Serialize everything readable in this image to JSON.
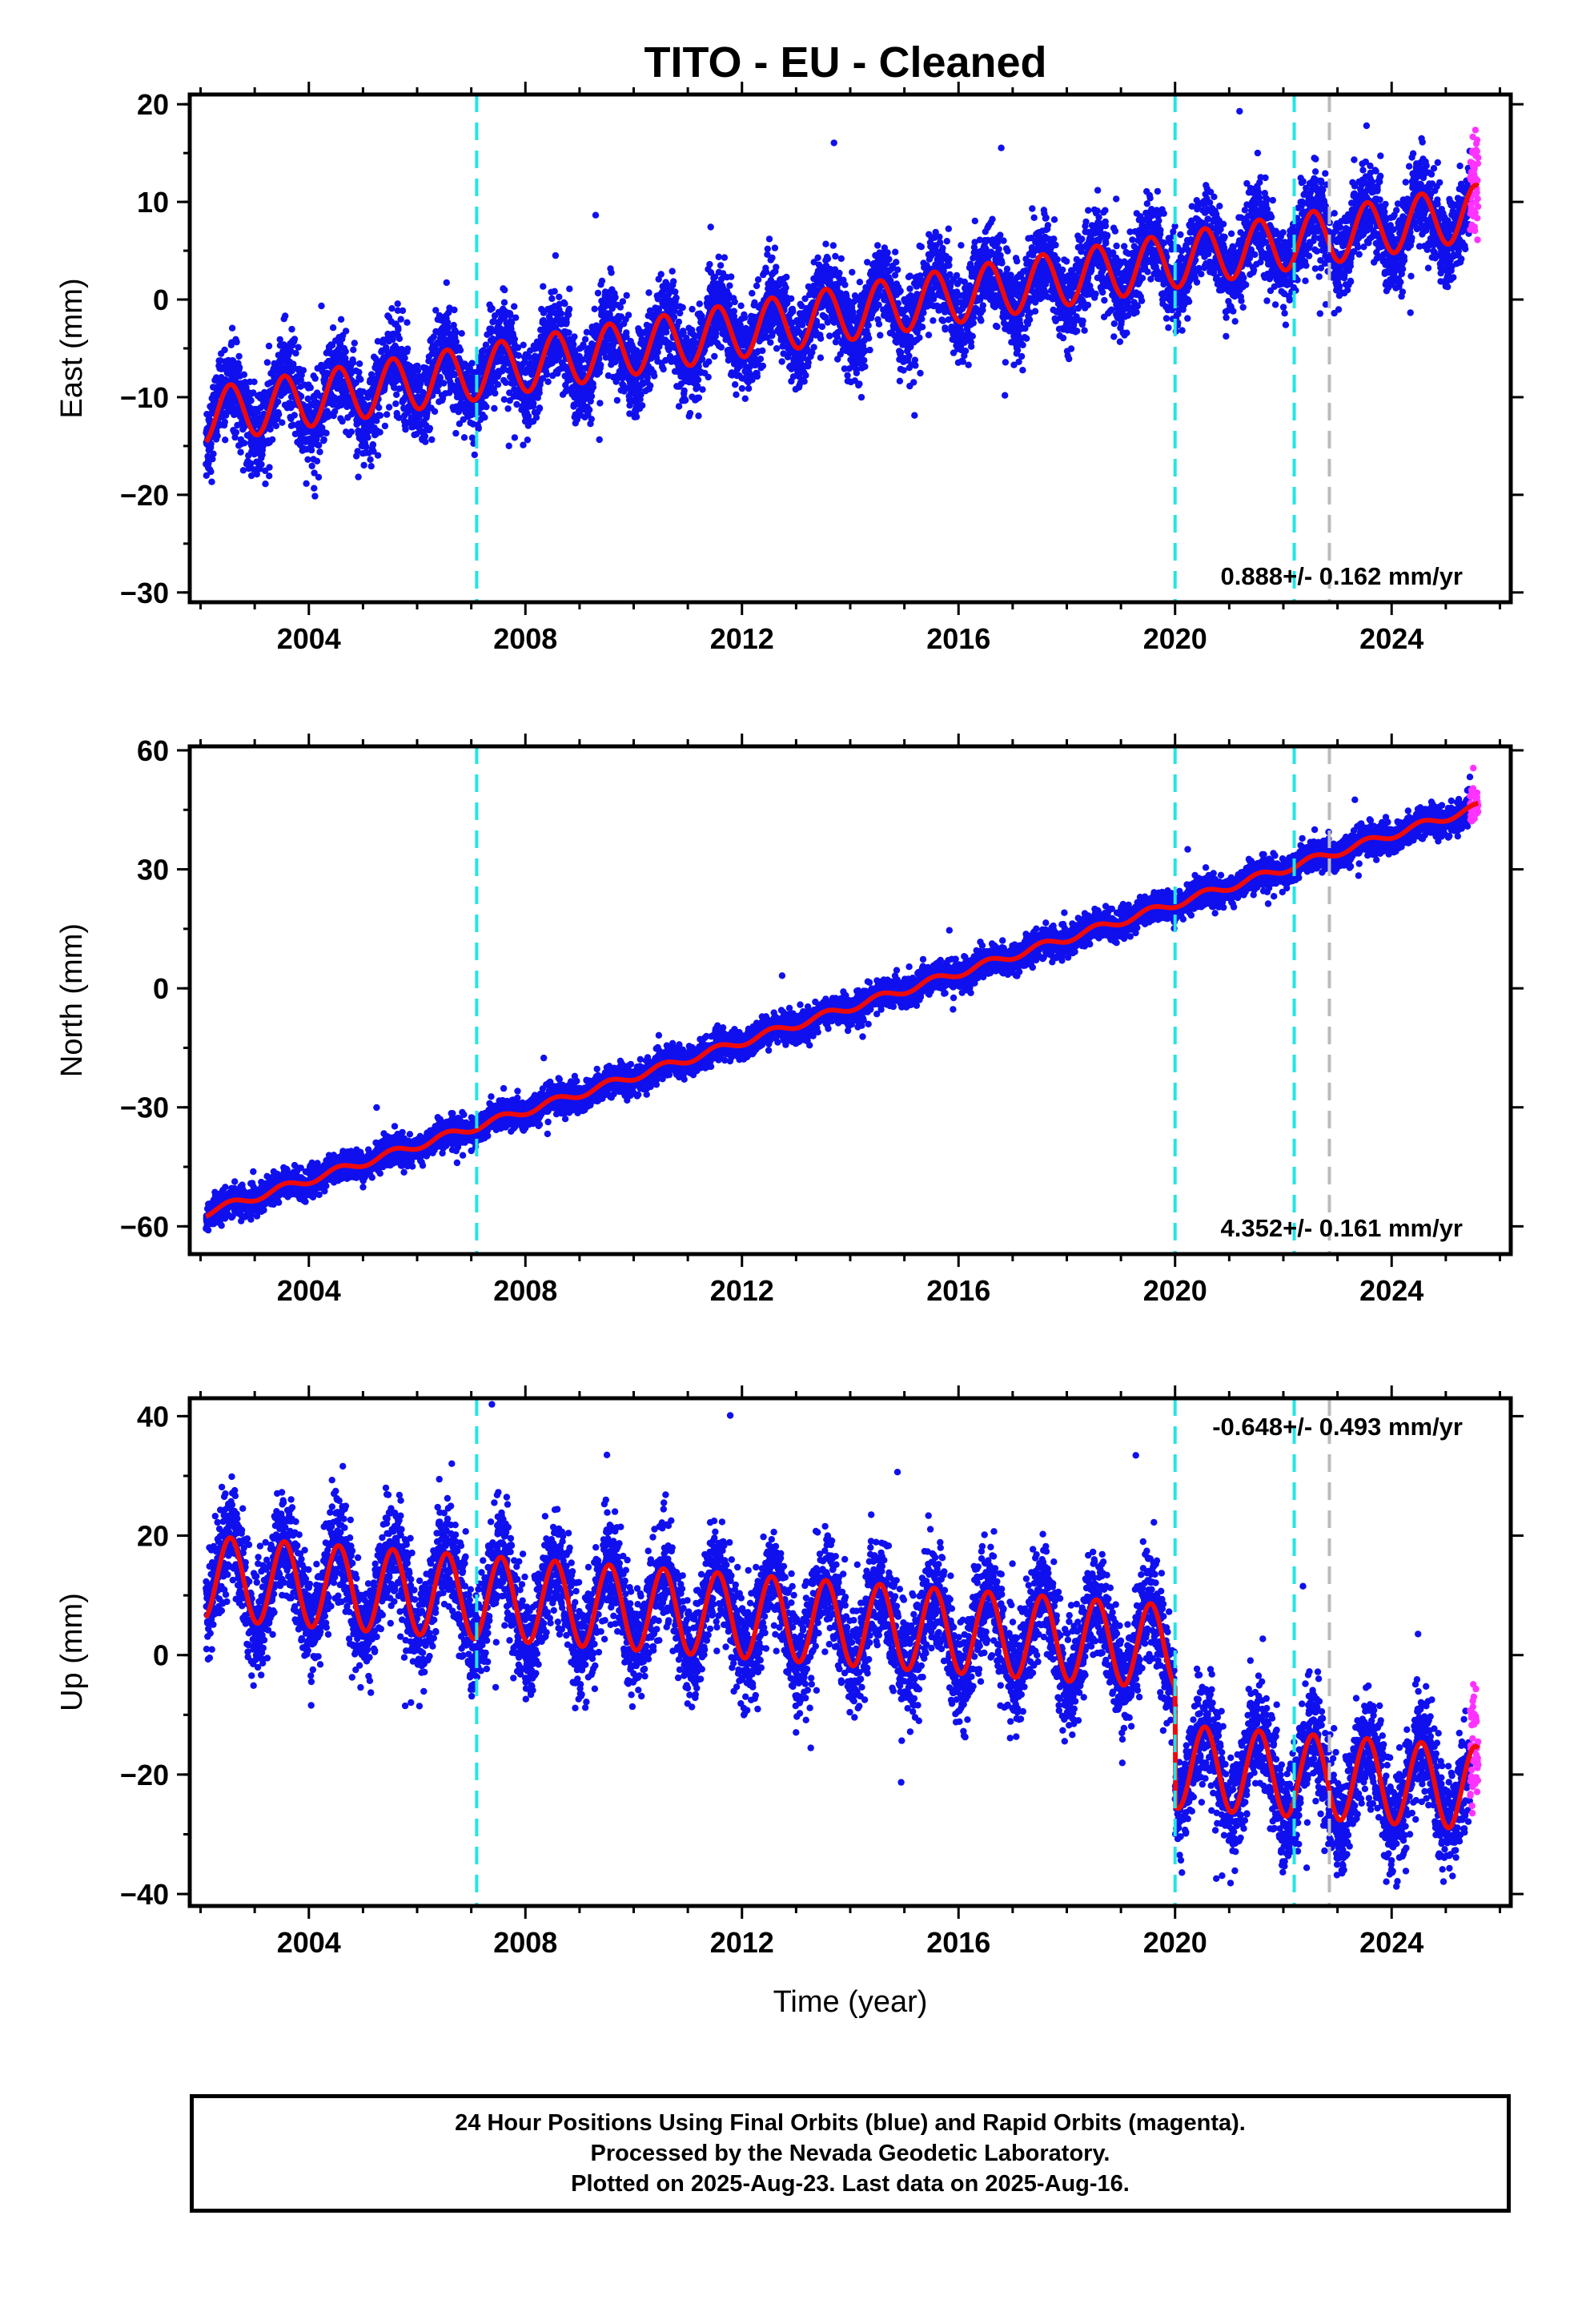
{
  "title": "TITO  - EU - Cleaned",
  "colors": {
    "final_orbits": "#1010ee",
    "rapid_orbits": "#ff33ff",
    "model": "#ee0a0a",
    "offset_cyan": "#22e5e5",
    "offset_gray": "#bbbbbb"
  },
  "chart_data": [
    {
      "type": "scatter",
      "component": "east",
      "ylabel": "East (mm)",
      "xlabel": "",
      "xlim": [
        2001.8,
        2026.2
      ],
      "ylim": [
        -31,
        21
      ],
      "xticks": [
        2004,
        2008,
        2012,
        2016,
        2020,
        2024
      ],
      "yticks": [
        -30,
        -20,
        -10,
        0,
        10,
        20
      ],
      "rate_label": "0.888+/- 0.162 mm/yr",
      "rate_position": "bottom-right",
      "model": {
        "intercept_2002": -12.0,
        "rate_mm_per_yr": 0.888,
        "annual_amplitude": 2.8,
        "noise_sd": 2.2
      },
      "offsets_cyan": [
        2007.1,
        2020.0,
        2022.2
      ],
      "offsets_gray": [
        2022.85
      ],
      "data_start": 2002.1,
      "data_end": 2025.6,
      "rapid_start": 2025.45,
      "grid": false
    },
    {
      "type": "scatter",
      "component": "north",
      "ylabel": "North (mm)",
      "xlabel": "",
      "xlim": [
        2001.8,
        2026.2
      ],
      "ylim": [
        -67,
        61
      ],
      "xticks": [
        2004,
        2008,
        2012,
        2016,
        2020,
        2024
      ],
      "yticks": [
        -60,
        -30,
        0,
        30,
        60
      ],
      "rate_label": "4.352+/- 0.161 mm/yr",
      "rate_position": "bottom-right",
      "model": {
        "intercept_2002": -57.0,
        "rate_mm_per_yr": 4.352,
        "annual_amplitude": 1.0,
        "noise_sd": 1.8
      },
      "offsets_cyan": [
        2007.1,
        2020.0,
        2022.2
      ],
      "offsets_gray": [
        2022.85
      ],
      "data_start": 2002.1,
      "data_end": 2025.6,
      "rapid_start": 2025.45,
      "grid": false
    },
    {
      "type": "scatter",
      "component": "up",
      "ylabel": "Up (mm)",
      "xlabel": "Time (year)",
      "xlim": [
        2001.8,
        2026.2
      ],
      "ylim": [
        -42,
        43
      ],
      "xticks": [
        2004,
        2008,
        2012,
        2016,
        2020,
        2024
      ],
      "yticks": [
        -40,
        -20,
        0,
        20,
        40
      ],
      "rate_label": "-0.648+/- 0.493 mm/yr",
      "rate_position": "top-right",
      "model": {
        "intercept_2002": 13.0,
        "rate_mm_per_yr": -0.648,
        "annual_amplitude": 7.0,
        "noise_sd": 4.5,
        "offset_2020_mm": -20.0
      },
      "offsets_cyan": [
        2007.1,
        2020.0,
        2022.2
      ],
      "offsets_gray": [
        2022.85
      ],
      "data_start": 2002.1,
      "data_end": 2025.6,
      "rapid_start": 2025.45,
      "grid": false
    }
  ],
  "footer": {
    "line1": "24 Hour Positions Using Final Orbits (blue) and Rapid Orbits (magenta).",
    "line2": "Processed by the Nevada Geodetic Laboratory.",
    "line3": "Plotted on 2025-Aug-23. Last data on 2025-Aug-16."
  }
}
